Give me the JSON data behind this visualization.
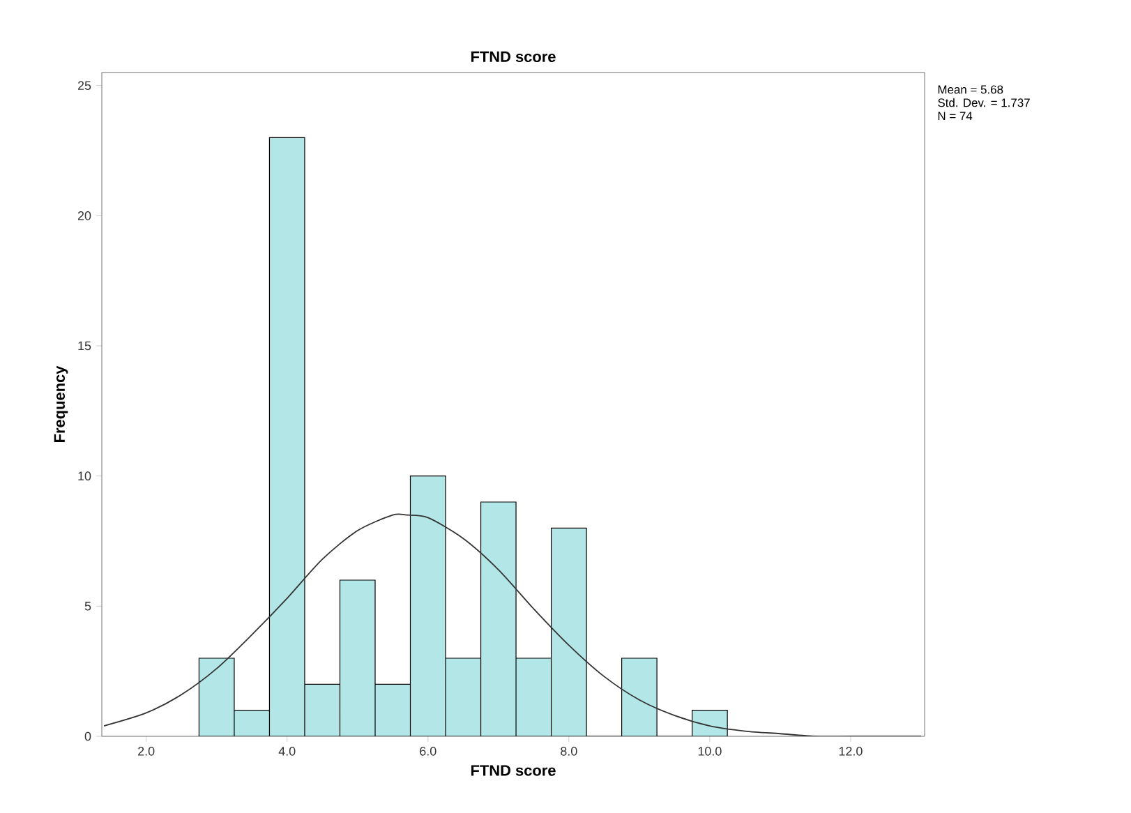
{
  "chart_data": {
    "type": "histogram",
    "title": "FTND score",
    "xlabel": "FTND score",
    "ylabel": "Frequency",
    "bins": [
      2.75,
      3.25,
      3.75,
      4.25,
      4.75,
      5.25,
      5.75,
      6.25,
      6.75,
      7.25,
      7.75,
      8.25,
      8.75,
      9.25,
      9.75,
      10.25
    ],
    "values": [
      3,
      1,
      23,
      2,
      6,
      2,
      10,
      3,
      9,
      3,
      8,
      0,
      3,
      0,
      1
    ],
    "color": "#b3e6e6",
    "series": [
      {
        "type": "line",
        "color": "#333333",
        "x": [
          1.4,
          2,
          2.5,
          3,
          3.5,
          4,
          4.5,
          5,
          5.5,
          5.7,
          6,
          6.5,
          7,
          7.5,
          8,
          8.5,
          9,
          9.5,
          10,
          10.5,
          11,
          11.5,
          12,
          12.5,
          13
        ],
        "values": [
          0.4,
          0.9,
          1.6,
          2.6,
          3.9,
          5.3,
          6.8,
          7.9,
          8.5,
          8.5,
          8.4,
          7.6,
          6.4,
          4.9,
          3.5,
          2.3,
          1.4,
          0.8,
          0.4,
          0.2,
          0.1,
          0,
          0,
          0,
          0
        ]
      }
    ],
    "xlim": [
      1.37,
      13.05
    ],
    "ylim": [
      0,
      25.5
    ],
    "xticks": [
      {
        "value": 2,
        "label": "2.0"
      },
      {
        "value": 4,
        "label": "4.0"
      },
      {
        "value": 6,
        "label": "6.0"
      },
      {
        "value": 8,
        "label": "8.0"
      },
      {
        "value": 10,
        "label": "10.0"
      },
      {
        "value": 12,
        "label": "12.0"
      }
    ],
    "yticks": [
      0,
      5,
      10,
      15,
      20,
      25
    ],
    "annotations": [
      "Mean = 5.68",
      "Std. Dev. = 1.737",
      "N = 74"
    ]
  }
}
